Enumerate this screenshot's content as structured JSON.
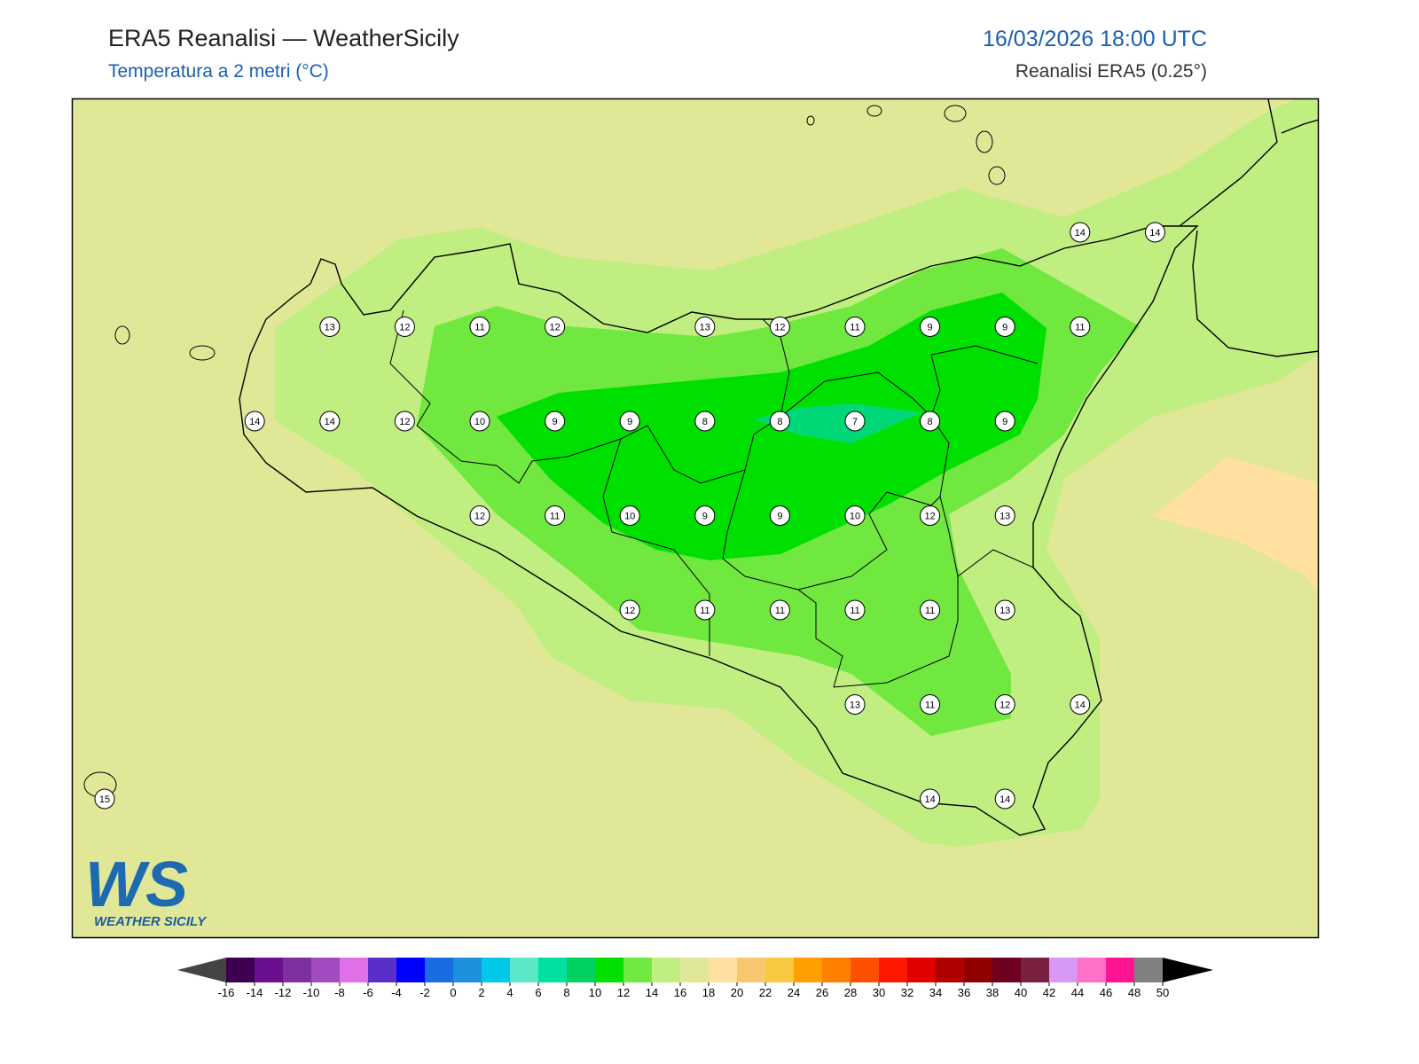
{
  "header": {
    "title": "ERA5 Reanalisi — WeatherSicily",
    "subtitle": "Temperatura a 2 metri (°C)",
    "datetime": "16/03/2026 18:00 UTC",
    "source": "Reanalisi ERA5 (0.25°)"
  },
  "stations": [
    14,
    14,
    13,
    12,
    11,
    12,
    13,
    12,
    11,
    9,
    9,
    11,
    14,
    14,
    12,
    10,
    9,
    9,
    8,
    8,
    7,
    8,
    9,
    12,
    11,
    10,
    9,
    9,
    10,
    12,
    13,
    12,
    11,
    11,
    11,
    11,
    13,
    13,
    11,
    12,
    14,
    15,
    14,
    14
  ],
  "colorbar": {
    "ticks": [
      -16,
      -14,
      -12,
      -10,
      -8,
      -6,
      -4,
      -2,
      0,
      2,
      4,
      6,
      8,
      10,
      12,
      14,
      16,
      18,
      20,
      22,
      24,
      26,
      28,
      30,
      32,
      34,
      36,
      38,
      40,
      42,
      44,
      46,
      48,
      50
    ],
    "colors": [
      "#3d0050",
      "#6a0f8e",
      "#7e30a0",
      "#a04cc0",
      "#e070e8",
      "#5a2ec8",
      "#0000ff",
      "#1a6de0",
      "#1e90dd",
      "#00c8e8",
      "#5ae8c8",
      "#00e0a0",
      "#00d060",
      "#00e000",
      "#70e840",
      "#c0ee80",
      "#e0e898",
      "#ffe0a0",
      "#f8c870",
      "#f8c840",
      "#ffa000",
      "#ff8000",
      "#ff5000",
      "#ff1800",
      "#e00000",
      "#b00000",
      "#900000",
      "#700020",
      "#7a2040",
      "#d898f8",
      "#ff70c8",
      "#ff1493",
      "#808080"
    ],
    "under_color": "#444444",
    "over_color": "#000000"
  },
  "logo": {
    "letters": "WS",
    "name": "WEATHER SICILY"
  }
}
